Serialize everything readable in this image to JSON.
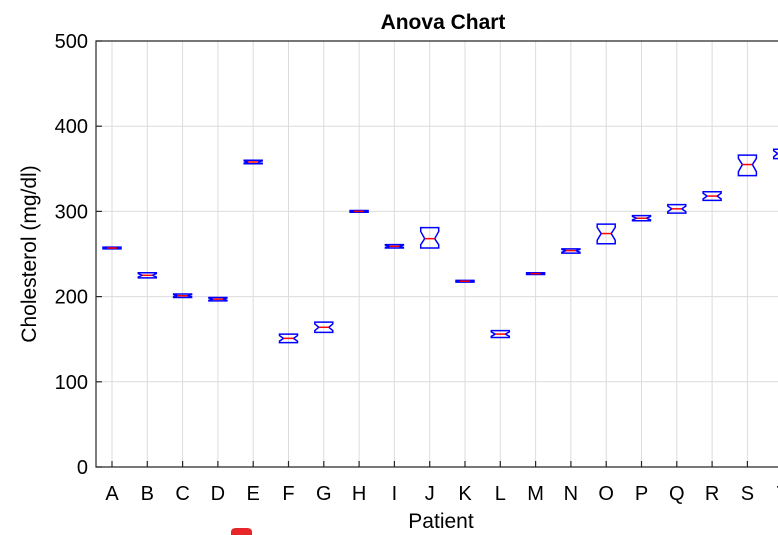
{
  "chart_data": {
    "type": "box",
    "title": "Anova Chart",
    "xlabel": "Patient",
    "ylabel": "Cholesterol (mg/dl)",
    "ylim": [
      0,
      500
    ],
    "yticks": [
      "0",
      "100",
      "200",
      "300",
      "400",
      "500"
    ],
    "grid": true,
    "categories": [
      "A",
      "B",
      "C",
      "D",
      "E",
      "F",
      "G",
      "H",
      "I",
      "J",
      "K",
      "L",
      "M",
      "N",
      "O",
      "P",
      "Q",
      "R",
      "S",
      "T"
    ],
    "boxes": [
      {
        "label": "A",
        "median": 257,
        "low": 256,
        "high": 258
      },
      {
        "label": "B",
        "median": 225,
        "low": 222,
        "high": 228
      },
      {
        "label": "C",
        "median": 201,
        "low": 199,
        "high": 203
      },
      {
        "label": "D",
        "median": 197,
        "low": 195,
        "high": 199
      },
      {
        "label": "E",
        "median": 358,
        "low": 356,
        "high": 360
      },
      {
        "label": "F",
        "median": 151,
        "low": 146,
        "high": 156
      },
      {
        "label": "G",
        "median": 164,
        "low": 158,
        "high": 170
      },
      {
        "label": "H",
        "median": 300,
        "low": 299,
        "high": 301
      },
      {
        "label": "I",
        "median": 259,
        "low": 257,
        "high": 261
      },
      {
        "label": "J",
        "median": 268,
        "low": 257,
        "high": 281
      },
      {
        "label": "K",
        "median": 218,
        "low": 217,
        "high": 219
      },
      {
        "label": "L",
        "median": 156,
        "low": 152,
        "high": 160
      },
      {
        "label": "M",
        "median": 227,
        "low": 226,
        "high": 228
      },
      {
        "label": "N",
        "median": 254,
        "low": 251,
        "high": 256
      },
      {
        "label": "O",
        "median": 274,
        "low": 262,
        "high": 285
      },
      {
        "label": "P",
        "median": 292,
        "low": 289,
        "high": 295
      },
      {
        "label": "Q",
        "median": 303,
        "low": 298,
        "high": 308
      },
      {
        "label": "R",
        "median": 318,
        "low": 313,
        "high": 323
      },
      {
        "label": "S",
        "median": 355,
        "low": 342,
        "high": 366
      },
      {
        "label": "T",
        "median": 368,
        "low": 362,
        "high": 373
      }
    ],
    "colors": {
      "box": "#0000ff",
      "median": "#ff0000",
      "grid": "#dcdcdc",
      "axis": "#262626"
    }
  }
}
